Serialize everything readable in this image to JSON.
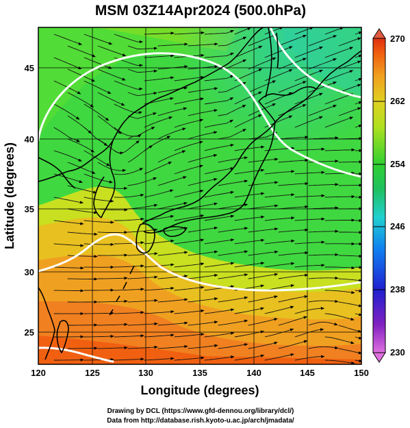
{
  "title": "MSM 03Z14Apr2024 (500.0hPa)",
  "x_axis": {
    "label": "Longitude (degrees)",
    "range": [
      120,
      150
    ],
    "ticks": [
      "120",
      "125",
      "130",
      "135",
      "140",
      "145",
      "150"
    ]
  },
  "y_axis": {
    "label": "Latitude  (degrees)",
    "range": [
      22.5,
      47.6
    ],
    "ticks": [
      "25",
      "30",
      "35",
      "40",
      "45"
    ]
  },
  "colorbar": {
    "range": [
      230,
      270
    ],
    "labels": [
      "230",
      "238",
      "246",
      "254",
      "262",
      "270"
    ],
    "colors": [
      "#e070e0",
      "#8020c0",
      "#2020d0",
      "#1080f0",
      "#20d0d0",
      "#20c060",
      "#30d030",
      "#b0e020",
      "#e0d020",
      "#f0a020",
      "#f06010",
      "#e03010"
    ]
  },
  "field": {
    "variable": "temperature",
    "contour_level": 256,
    "contour_color": "#ffffff",
    "coast_color": "#000000"
  },
  "credits": {
    "line1": "Drawing by DCL (https://www.gfd-dennou.org/library/dcl/)",
    "line2": "Data from http://database.rish.kyoto-u.ac.jp/arch/jmadata/"
  }
}
